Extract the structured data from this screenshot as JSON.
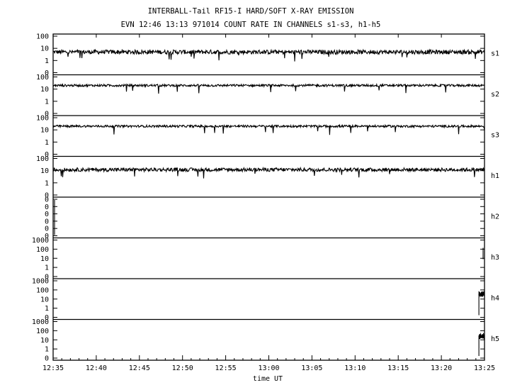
{
  "chart_data": {
    "type": "line",
    "title": "INTERBALL-Tail RF15-I HARD/SOFT X-RAY EMISSION",
    "subtitle": "EVN 12:46 13:13 971014  COUNT RATE IN CHANNELS s1-s3, h1-h5",
    "xlabel": "time UT",
    "x_tick_labels": [
      "12:35",
      "12:40",
      "12:45",
      "12:50",
      "12:55",
      "13:00",
      "13:05",
      "13:10",
      "13:15",
      "13:20",
      "13:25"
    ],
    "xlim": [
      "12:35",
      "13:25"
    ],
    "y_scale": "log",
    "grid": false,
    "panels": [
      {
        "name": "s1",
        "y_tick_labels": [
          "100",
          "10",
          "1",
          "0"
        ],
        "level": 5,
        "noise": 0.35,
        "series": [
          {
            "name": "s1",
            "x": [
              "12:35",
              "13:25"
            ],
            "y": [
              5,
              5
            ]
          }
        ]
      },
      {
        "name": "s2",
        "y_tick_labels": [
          "100",
          "10",
          "1",
          "0"
        ],
        "level": 20,
        "noise": 0.18,
        "series": [
          {
            "name": "s2",
            "x": [
              "12:35",
              "13:25"
            ],
            "y": [
              20,
              20
            ]
          }
        ]
      },
      {
        "name": "s3",
        "y_tick_labels": [
          "100",
          "10",
          "1",
          "0"
        ],
        "level": 20,
        "noise": 0.18,
        "series": [
          {
            "name": "s3",
            "x": [
              "12:35",
              "13:25"
            ],
            "y": [
              20,
              20
            ]
          }
        ]
      },
      {
        "name": "h1",
        "y_tick_labels": [
          "100",
          "10",
          "1",
          "0"
        ],
        "level": 12,
        "noise": 0.3,
        "series": [
          {
            "name": "h1",
            "x": [
              "12:35",
              "13:25"
            ],
            "y": [
              12,
              12
            ]
          }
        ]
      },
      {
        "name": "h2",
        "y_tick_labels": [
          "0",
          "0",
          "0",
          "0",
          "0",
          "0"
        ],
        "level": null,
        "noise": 0,
        "series": []
      },
      {
        "name": "h3",
        "y_tick_labels": [
          "1000",
          "100",
          "10",
          "1",
          "0"
        ],
        "level": null,
        "noise": 0,
        "series": []
      },
      {
        "name": "h4",
        "y_tick_labels": [
          "1000",
          "100",
          "10",
          "1",
          "0"
        ],
        "level": null,
        "noise": 0,
        "series": [
          {
            "name": "h4",
            "x": [
              "13:24",
              "13:25"
            ],
            "y": [
              30,
              40
            ]
          }
        ]
      },
      {
        "name": "h5",
        "y_tick_labels": [
          "1000",
          "100",
          "10",
          "1",
          "0"
        ],
        "level": null,
        "noise": 0,
        "series": [
          {
            "name": "h5",
            "x": [
              "13:24",
              "13:25"
            ],
            "y": [
              20,
              30
            ]
          }
        ]
      }
    ]
  }
}
